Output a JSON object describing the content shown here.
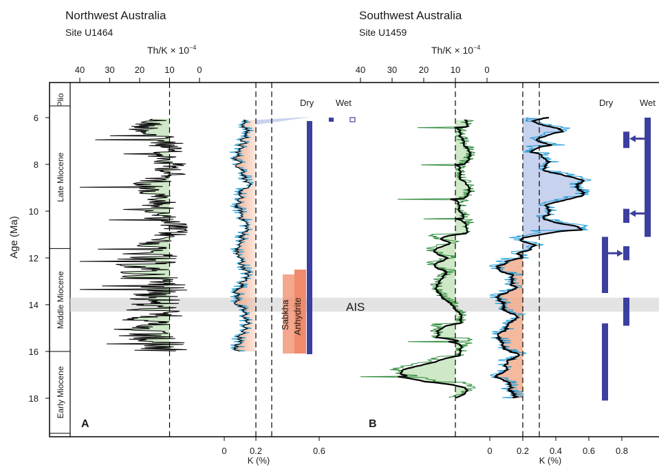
{
  "panels": {
    "left": {
      "title": "Northwest Australia",
      "site": "Site U1464",
      "letter": "A"
    },
    "right": {
      "title": "Southwest Australia",
      "site": "Site U1459",
      "letter": "B"
    }
  },
  "labels": {
    "thk_axis": "Th/K × 10",
    "thk_exp": "−4",
    "k_axis": "K (%)",
    "y_axis": "Age (Ma)",
    "dry": "Dry",
    "wet": "Wet",
    "ais": "AIS",
    "sabkha": "Sabkha",
    "anhydrite": "Anhydrite"
  },
  "colors": {
    "green_fill": "#cfe8c8",
    "green_line": "#2e8b3a",
    "orange_fill": "#f0a988",
    "blue_fill": "#c7d2ee",
    "blue_line": "#1f9bd7",
    "bar_blue": "#3c3f9e",
    "ais_band": "#d9d9d9",
    "sabkha": "#ef8a6a"
  },
  "chart_data": [
    {
      "type": "line",
      "panel": "A",
      "series_name": "Th/K",
      "x_axis_reversed": true,
      "xlim": [
        42,
        -2
      ],
      "xticks": [
        40,
        30,
        20,
        10,
        0
      ],
      "ylim": [
        19.5,
        5
      ],
      "yticks": [
        6,
        8,
        10,
        12,
        14,
        16,
        18
      ],
      "reference_line_thk": 10,
      "age_range": [
        6,
        16
      ]
    },
    {
      "type": "line",
      "panel": "A",
      "series_name": "K (%)",
      "xticks": [
        0,
        0.2,
        0.6
      ],
      "reference_lines_k": [
        0.2,
        0.3
      ],
      "age_range": [
        6,
        16
      ]
    },
    {
      "type": "line",
      "panel": "B",
      "series_name": "Th/K",
      "x_axis_reversed": true,
      "xticks": [
        40,
        30,
        20,
        10,
        0
      ],
      "reference_line_thk": 10,
      "age_range": [
        6,
        18
      ]
    },
    {
      "type": "line",
      "panel": "B",
      "series_name": "K (%)",
      "xticks": [
        0,
        0.2,
        0.4,
        0.6,
        0.8
      ],
      "reference_lines_k": [
        0.2,
        0.3
      ],
      "age_range": [
        6,
        18
      ]
    }
  ],
  "epochs": [
    {
      "name": "Plio",
      "from": 5,
      "to": 5.5
    },
    {
      "name": "Late Miocene",
      "from": 5.5,
      "to": 11.6
    },
    {
      "name": "Middle Miocene",
      "from": 11.6,
      "to": 16
    },
    {
      "name": "Early Miocene",
      "from": 16,
      "to": 19.5
    }
  ],
  "ais_band": {
    "from": 13.7,
    "to": 14.3
  },
  "climate_bars_a": [
    {
      "x_k": 0.52,
      "from": 6.2,
      "to": 16,
      "label": "Dry"
    }
  ],
  "climate_bars_b": [
    {
      "col": "dry",
      "from": 6.6,
      "to": 7.3
    },
    {
      "col": "dry",
      "from": 9.9,
      "to": 10.5
    },
    {
      "col": "dry",
      "from": 11.5,
      "to": 12.1
    },
    {
      "col": "dry",
      "from": 13.7,
      "to": 14.9
    },
    {
      "col": "wet",
      "from": 6,
      "to": 11.1
    },
    {
      "col": "wet",
      "from": 11.1,
      "to": 13.5
    },
    {
      "col": "wet",
      "from": 14.8,
      "to": 18.1
    }
  ],
  "arrows_b": [
    {
      "age": 6.9,
      "dir": "left"
    },
    {
      "age": 10.1,
      "dir": "left"
    },
    {
      "age": 11.8,
      "dir": "right"
    }
  ]
}
